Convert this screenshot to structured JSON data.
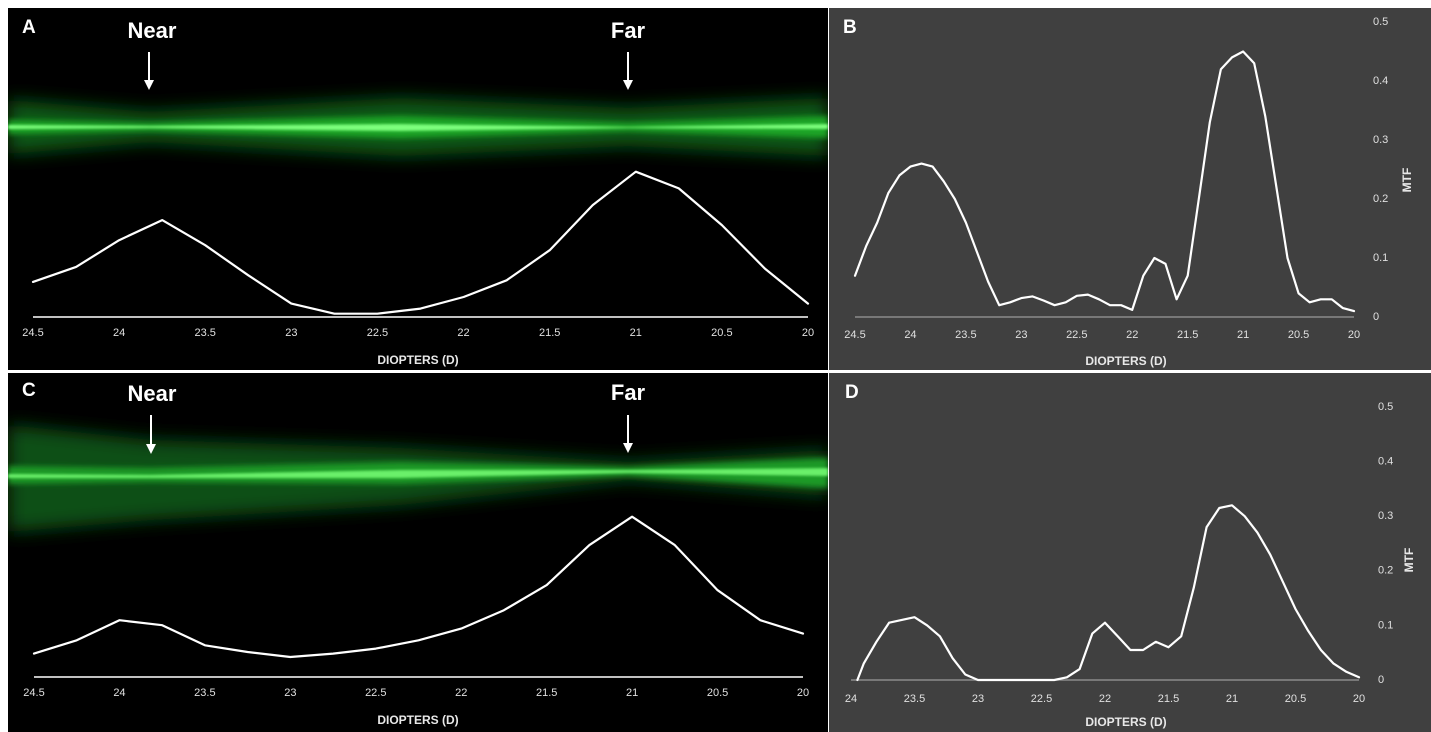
{
  "chart_data": [
    {
      "type": "line",
      "panel": "A",
      "annotations": [
        "Near",
        "Far"
      ],
      "x_label": "DIOPTERS (D)",
      "x": [
        24.5,
        24.25,
        24,
        23.75,
        23.5,
        23.25,
        23,
        22.75,
        22.5,
        22.25,
        22,
        21.75,
        21.5,
        21.25,
        21,
        20.75,
        20.5,
        20.25,
        20
      ],
      "values": [
        0.21,
        0.3,
        0.46,
        0.58,
        0.43,
        0.25,
        0.08,
        0.02,
        0.02,
        0.05,
        0.12,
        0.22,
        0.4,
        0.67,
        0.87,
        0.77,
        0.55,
        0.29,
        0.08
      ],
      "color": "#ffffff",
      "xlim": [
        24.5,
        20
      ],
      "xticks": [
        24.5,
        24,
        23.5,
        23,
        22.5,
        22,
        21.5,
        21,
        20.5,
        20
      ],
      "ylim": [
        0,
        1
      ]
    },
    {
      "type": "line",
      "panel": "B",
      "x_label": "DIOPTERS (D)",
      "y_label": "MTF",
      "x": [
        24.5,
        24.4,
        24.3,
        24.2,
        24.1,
        24,
        23.9,
        23.8,
        23.7,
        23.6,
        23.5,
        23.4,
        23.3,
        23.2,
        23.1,
        23,
        22.9,
        22.8,
        22.7,
        22.6,
        22.5,
        22.4,
        22.3,
        22.2,
        22.1,
        22,
        21.9,
        21.8,
        21.7,
        21.6,
        21.5,
        21.4,
        21.3,
        21.2,
        21.1,
        21,
        20.9,
        20.8,
        20.7,
        20.6,
        20.5,
        20.4,
        20.3,
        20.2,
        20.1,
        20
      ],
      "values": [
        0.07,
        0.12,
        0.16,
        0.21,
        0.24,
        0.255,
        0.26,
        0.255,
        0.23,
        0.2,
        0.16,
        0.11,
        0.06,
        0.02,
        0.025,
        0.032,
        0.035,
        0.028,
        0.02,
        0.025,
        0.036,
        0.038,
        0.03,
        0.02,
        0.02,
        0.012,
        0.07,
        0.1,
        0.09,
        0.03,
        0.07,
        0.2,
        0.33,
        0.42,
        0.44,
        0.45,
        0.43,
        0.34,
        0.22,
        0.1,
        0.04,
        0.025,
        0.03,
        0.03,
        0.015,
        0.01
      ],
      "color": "#ffffff",
      "xlim": [
        24.5,
        20
      ],
      "xticks": [
        24.5,
        24,
        23.5,
        23,
        22.5,
        22,
        21.5,
        21,
        20.5,
        20
      ],
      "ylim": [
        0,
        0.5
      ],
      "yticks": [
        0,
        0.1,
        0.2,
        0.3,
        0.4,
        0.5
      ]
    },
    {
      "type": "line",
      "panel": "C",
      "annotations": [
        "Near",
        "Far"
      ],
      "x_label": "DIOPTERS (D)",
      "x": [
        24.5,
        24.25,
        24,
        23.75,
        23.5,
        23.25,
        23,
        22.75,
        22.5,
        22.25,
        22,
        21.75,
        21.5,
        21.25,
        21,
        20.75,
        20.5,
        20.25,
        20
      ],
      "values": [
        0.14,
        0.22,
        0.34,
        0.31,
        0.19,
        0.15,
        0.12,
        0.14,
        0.17,
        0.22,
        0.29,
        0.4,
        0.55,
        0.79,
        0.96,
        0.79,
        0.52,
        0.34,
        0.26
      ],
      "color": "#ffffff",
      "xlim": [
        24.5,
        20
      ],
      "xticks": [
        24.5,
        24,
        23.5,
        23,
        22.5,
        22,
        21.5,
        21,
        20.5,
        20
      ],
      "ylim": [
        0,
        1
      ]
    },
    {
      "type": "line",
      "panel": "D",
      "x_label": "DIOPTERS (D)",
      "y_label": "MTF",
      "x": [
        23.95,
        23.9,
        23.8,
        23.7,
        23.6,
        23.5,
        23.4,
        23.3,
        23.2,
        23.1,
        23,
        22.9,
        22.8,
        22.7,
        22.6,
        22.5,
        22.4,
        22.3,
        22.2,
        22.1,
        22,
        21.9,
        21.8,
        21.7,
        21.6,
        21.5,
        21.4,
        21.3,
        21.2,
        21.1,
        21,
        20.9,
        20.8,
        20.7,
        20.6,
        20.5,
        20.4,
        20.3,
        20.2,
        20.1,
        20
      ],
      "values": [
        0,
        0.03,
        0.07,
        0.105,
        0.11,
        0.115,
        0.1,
        0.08,
        0.04,
        0.01,
        0,
        0,
        0,
        0,
        0,
        0,
        0,
        0.005,
        0.02,
        0.085,
        0.105,
        0.08,
        0.055,
        0.055,
        0.07,
        0.06,
        0.08,
        0.17,
        0.28,
        0.315,
        0.32,
        0.3,
        0.27,
        0.23,
        0.18,
        0.13,
        0.09,
        0.055,
        0.03,
        0.015,
        0.005
      ],
      "color": "#ffffff",
      "xlim": [
        24,
        20
      ],
      "xticks": [
        24,
        23.5,
        23,
        22.5,
        22,
        21.5,
        21,
        20.5,
        20
      ],
      "ylim": [
        0,
        0.5
      ],
      "yticks": [
        0,
        0.1,
        0.2,
        0.3,
        0.4,
        0.5
      ]
    }
  ]
}
